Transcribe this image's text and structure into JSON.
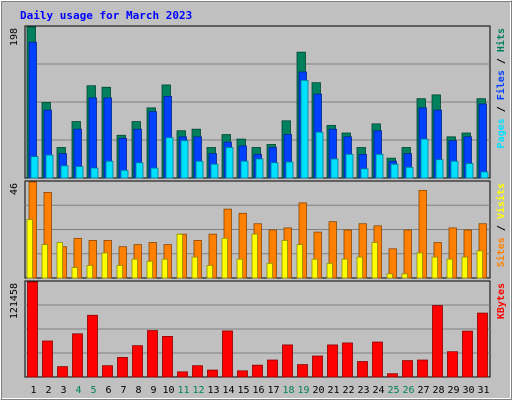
{
  "chart_data": {
    "type": "bar",
    "title": "Daily usage for March 2023",
    "colors": {
      "hits": "#00805c",
      "files": "#0040ff",
      "pages": "#00e0ff",
      "sites": "#ff8000",
      "visits": "#ffff00",
      "kbytes": "#ff0000",
      "background": "#c0c0c0",
      "weekend_label": "#00805c",
      "title": "#0000ff"
    },
    "x": [
      1,
      2,
      3,
      4,
      5,
      6,
      7,
      8,
      9,
      10,
      11,
      12,
      13,
      14,
      15,
      16,
      17,
      18,
      19,
      20,
      21,
      22,
      23,
      24,
      25,
      26,
      27,
      28,
      29,
      30,
      31
    ],
    "weekend_days": [
      4,
      5,
      11,
      12,
      18,
      19,
      25,
      26
    ],
    "panels": [
      {
        "name": "hits_files_pages",
        "ymax": 198,
        "ymax_label": "198",
        "legend": [
          {
            "key": "pages",
            "text": "Pages"
          },
          {
            "key": "sep",
            "text": " / "
          },
          {
            "key": "files",
            "text": "Files"
          },
          {
            "key": "sep",
            "text": " / "
          },
          {
            "key": "hits",
            "text": "Hits"
          }
        ],
        "series": [
          {
            "name": "Hits",
            "key": "hits",
            "values": [
              198,
              99,
              40,
              74,
              121,
              119,
              56,
              74,
              92,
              122,
              62,
              64,
              40,
              57,
              51,
              40,
              44,
              75,
              165,
              125,
              69,
              59,
              40,
              71,
              26,
              40,
              104,
              109,
              54,
              59,
              104
            ]
          },
          {
            "name": "Files",
            "key": "files",
            "values": [
              178,
              89,
              32,
              64,
              105,
              105,
              52,
              64,
              87,
              107,
              54,
              54,
              32,
              47,
              42,
              31,
              40,
              57,
              139,
              110,
              64,
              54,
              31,
              62,
              22,
              32,
              92,
              89,
              49,
              54,
              97
            ]
          },
          {
            "name": "Pages",
            "key": "pages",
            "values": [
              28,
              30,
              16,
              15,
              13,
              22,
              10,
              20,
              13,
              53,
              49,
              22,
              18,
              40,
              22,
              25,
              20,
              21,
              128,
              60,
              25,
              31,
              12,
              31,
              18,
              14,
              51,
              24,
              22,
              19,
              8
            ]
          }
        ]
      },
      {
        "name": "visits_sites",
        "ymax": 46,
        "ymax_label": "46",
        "legend": [
          {
            "key": "sites",
            "text": "Sites"
          },
          {
            "key": "sep",
            "text": " / "
          },
          {
            "key": "visits",
            "text": "Visits"
          }
        ],
        "series": [
          {
            "name": "Sites",
            "key": "sites",
            "values": [
              46,
              41,
              15,
              19,
              18,
              18,
              15,
              16,
              17,
              16,
              21,
              18,
              21,
              33,
              31,
              26,
              23,
              24,
              36,
              22,
              27,
              23,
              26,
              25,
              14,
              23,
              42,
              17,
              24,
              23,
              26
            ]
          },
          {
            "name": "Visits",
            "key": "visits",
            "values": [
              28,
              16,
              17,
              5,
              6,
              12,
              6,
              9,
              8,
              9,
              21,
              10,
              6,
              19,
              9,
              21,
              7,
              18,
              16,
              9,
              7,
              9,
              10,
              17,
              2,
              2,
              12,
              10,
              9,
              10,
              13
            ]
          }
        ]
      },
      {
        "name": "kbytes",
        "ymax": 121458,
        "ymax_label": "121458",
        "legend": [
          {
            "key": "kbytes",
            "text": "KBytes"
          }
        ],
        "series": [
          {
            "name": "KBytes",
            "key": "kbytes",
            "values": [
              121458,
              46024,
              13240,
              55200,
              78894,
              14474,
              25015,
              40074,
              59400,
              51900,
              6600,
              14470,
              8840,
              58880,
              7900,
              15110,
              21680,
              41000,
              15890,
              26780,
              41000,
              43520,
              19740,
              44680,
              4220,
              21000,
              21700,
              91330,
              32350,
              58610,
              81710
            ]
          }
        ]
      }
    ]
  }
}
